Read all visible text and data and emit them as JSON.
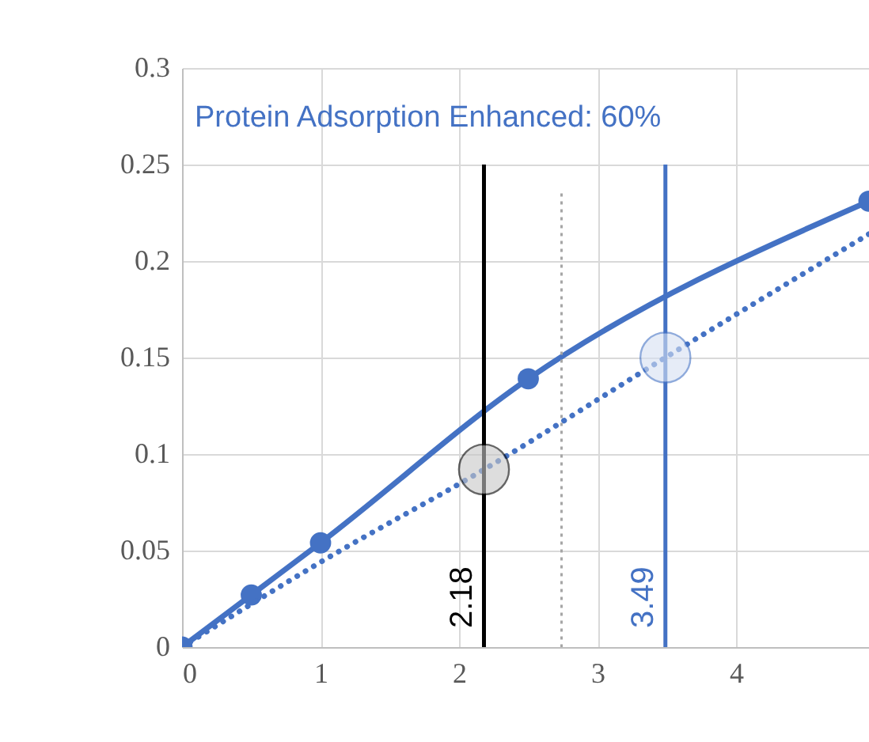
{
  "chart_data": {
    "type": "line",
    "xlim": [
      0,
      4.96
    ],
    "xticks": [
      0,
      1,
      2,
      3,
      4
    ],
    "ylim": [
      0,
      0.3
    ],
    "yticks": [
      0,
      0.05,
      0.1,
      0.15,
      0.2,
      0.25,
      0.3
    ],
    "grid": true,
    "series": [
      {
        "color": "#4472c4",
        "marker": "circle",
        "line_style": "solid",
        "x": [
          0,
          0.5,
          1,
          2.5,
          4.96
        ],
        "values": [
          0,
          0.027,
          0.054,
          0.139,
          0.231
        ]
      },
      {
        "color": "#4472c4",
        "marker": "none",
        "line_style": "dotted",
        "x": [
          0,
          1,
          2.18,
          3.49,
          4.96
        ],
        "values": [
          0,
          0.044,
          0.092,
          0.15,
          0.214
        ]
      },
      {
        "type": "scatter",
        "color": "#c8c8c8",
        "x": [
          2.18
        ],
        "values": [
          0.092
        ]
      },
      {
        "type": "scatter",
        "color": "#d6e0f3",
        "x": [
          3.49
        ],
        "values": [
          0.15
        ]
      }
    ],
    "ref_lines": [
      {
        "axis": "x",
        "value": 2.18,
        "label": "2.18",
        "color": "#000000",
        "line_style": "solid"
      },
      {
        "axis": "x",
        "value": 3.49,
        "label": "3.49",
        "color": "#4472c4",
        "line_style": "solid"
      },
      {
        "axis": "x",
        "value": 2.74,
        "color": "#a6a6a6",
        "line_style": "dotted"
      }
    ],
    "annotations": [
      "Protein Adsorption Enhanced: 60%"
    ]
  }
}
